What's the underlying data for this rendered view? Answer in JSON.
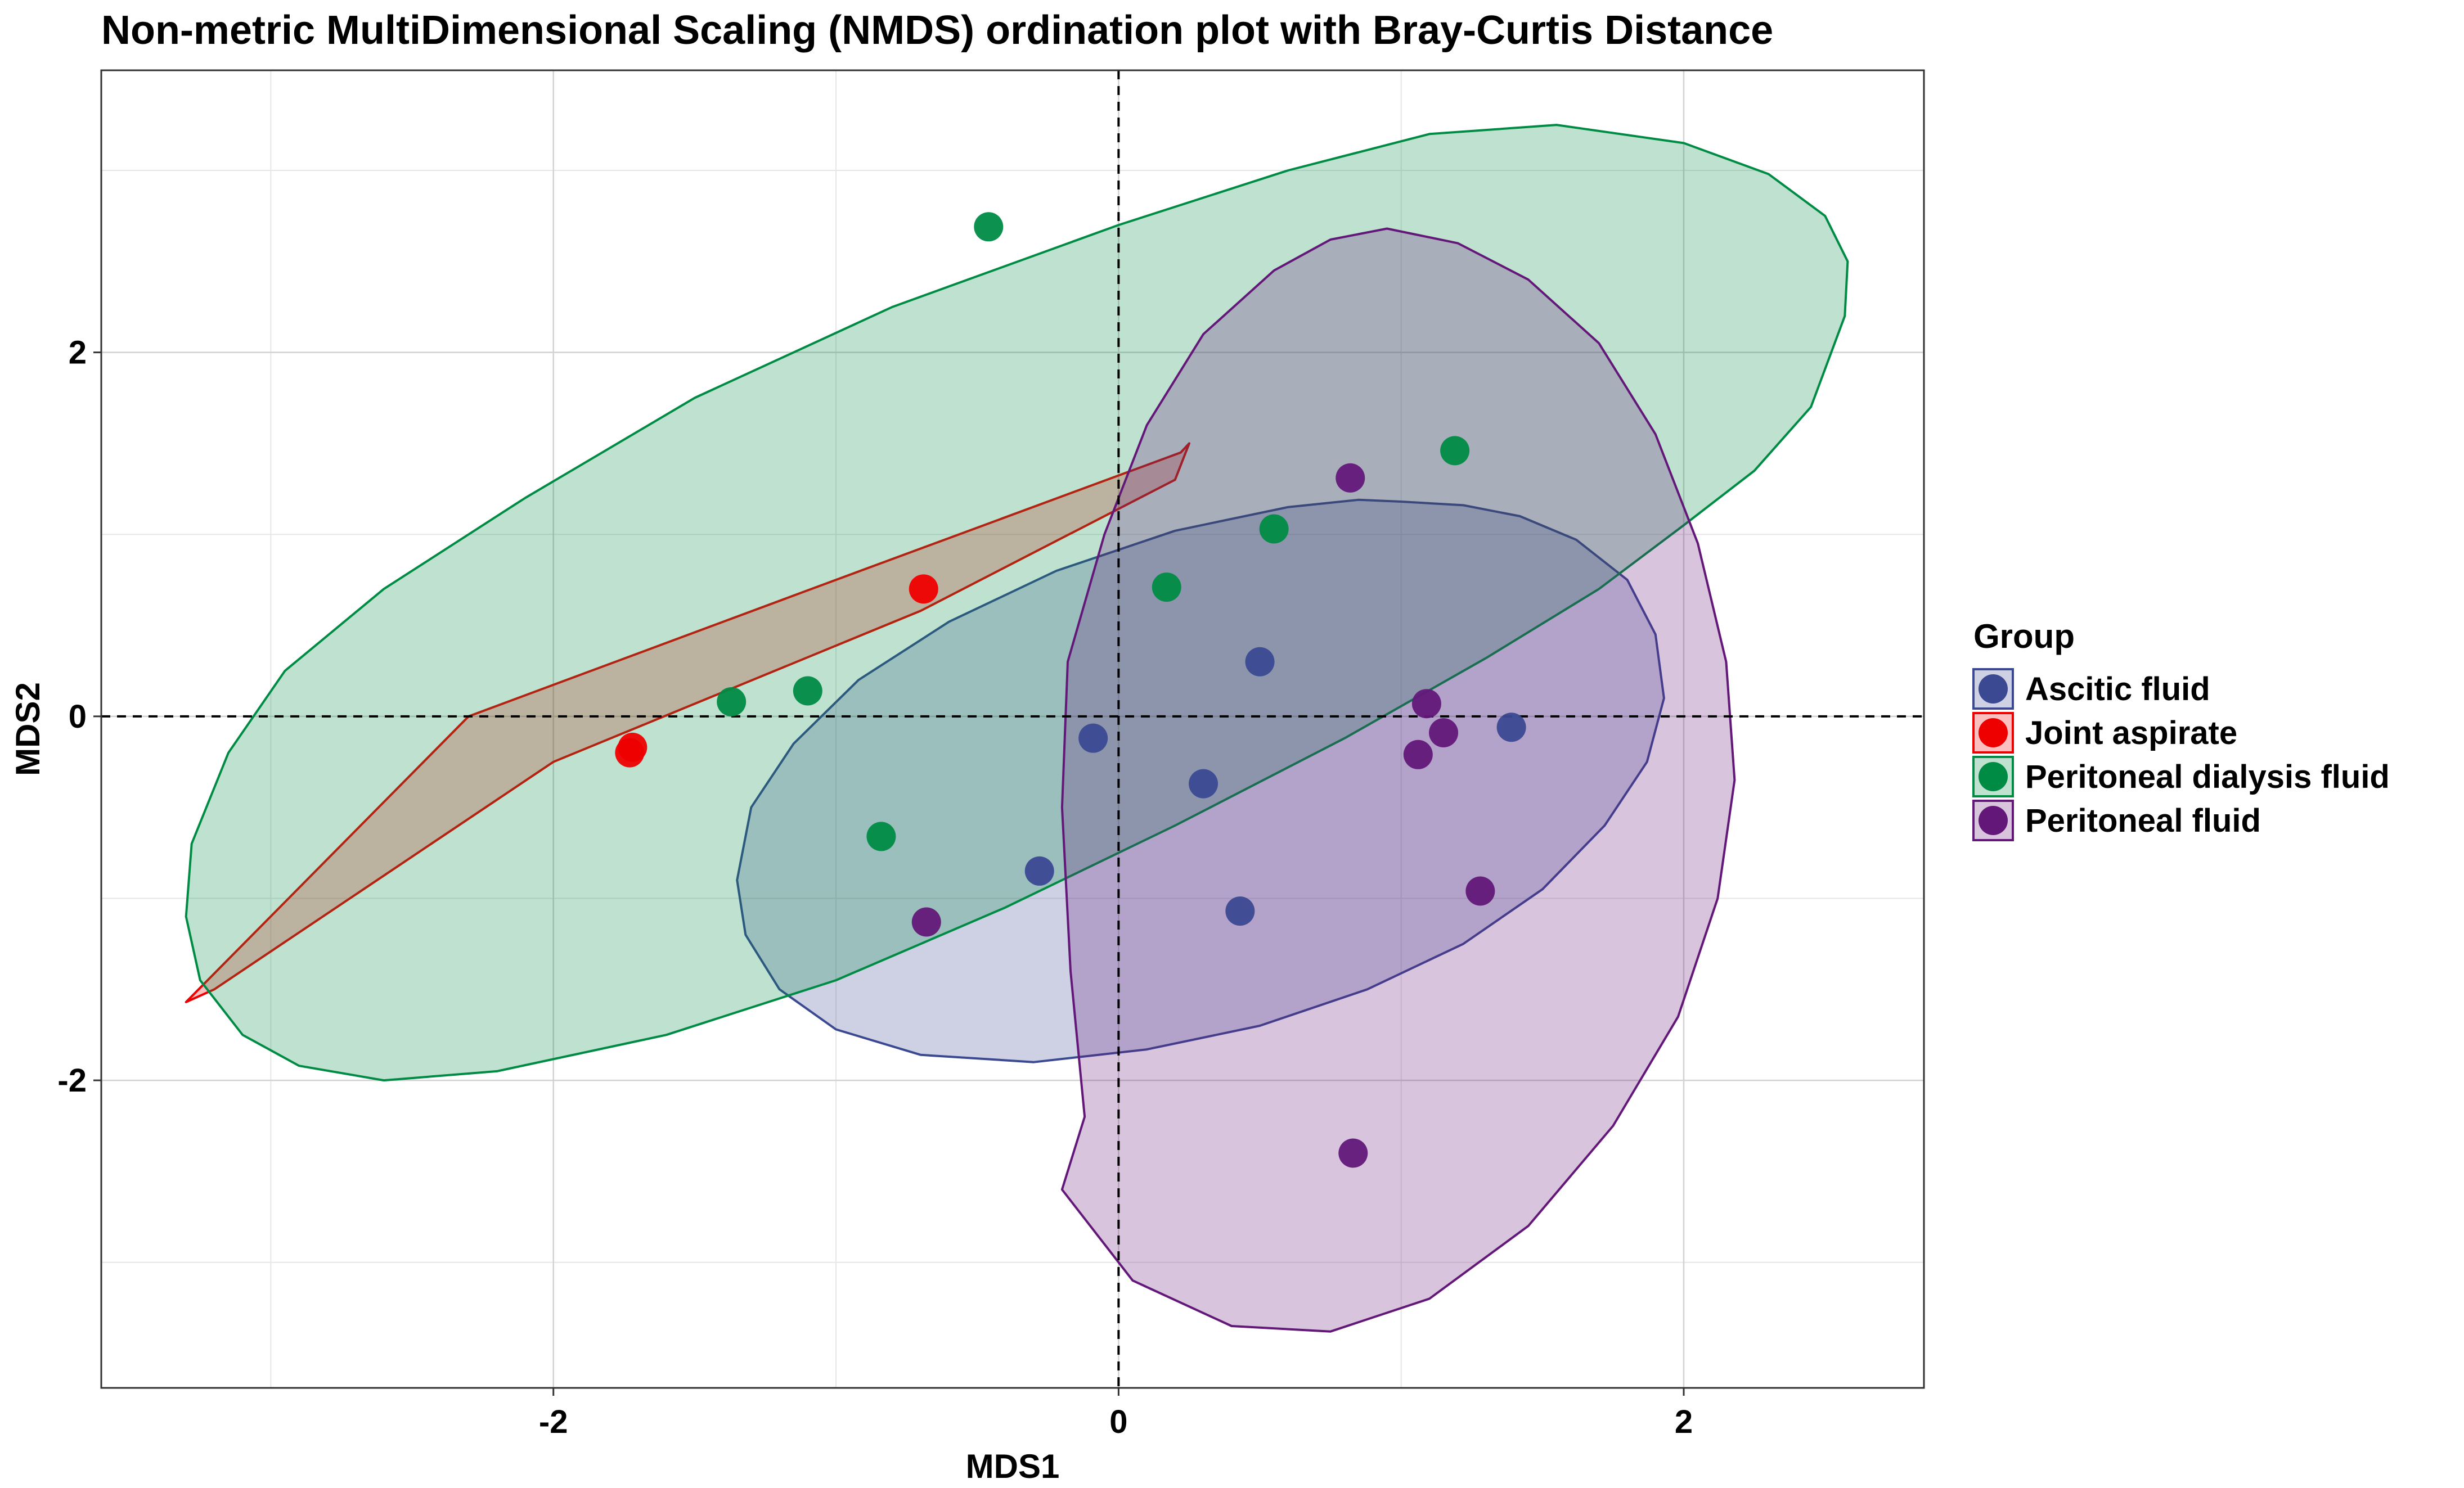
{
  "chart_data": {
    "type": "scatter",
    "title": "Non-metric MultiDimensional Scaling (NMDS) ordination plot with Bray-Curtis Distance",
    "xlabel": "MDS1",
    "ylabel": "MDS2",
    "xlim": [
      -3.6,
      2.85
    ],
    "ylim": [
      -3.69,
      3.55
    ],
    "x_ticks": [
      -2,
      0,
      2
    ],
    "x_tick_labels": [
      "-2",
      "0",
      "2"
    ],
    "y_ticks": [
      -2,
      0,
      2
    ],
    "y_tick_labels": [
      "-2",
      "0",
      "2"
    ],
    "grid": true,
    "reference_lines": {
      "x": 0,
      "y": 0,
      "style": "dashed"
    },
    "legend": {
      "title": "Group",
      "position": "right"
    },
    "series": [
      {
        "name": "Ascitic fluid",
        "color": "#3B4992",
        "points": [
          [
            -0.09,
            -0.12
          ],
          [
            0.3,
            -0.37
          ],
          [
            0.5,
            0.3
          ],
          [
            -0.28,
            -0.85
          ],
          [
            0.43,
            -1.07
          ],
          [
            1.39,
            -0.06
          ]
        ],
        "ellipse": [
          [
            1.0,
            1.18
          ],
          [
            1.22,
            1.16
          ],
          [
            1.42,
            1.1
          ],
          [
            1.62,
            0.97
          ],
          [
            1.8,
            0.75
          ],
          [
            1.9,
            0.45
          ],
          [
            1.93,
            0.1
          ],
          [
            1.87,
            -0.25
          ],
          [
            1.72,
            -0.6
          ],
          [
            1.5,
            -0.95
          ],
          [
            1.22,
            -1.25
          ],
          [
            0.88,
            -1.5
          ],
          [
            0.5,
            -1.7
          ],
          [
            0.1,
            -1.83
          ],
          [
            -0.3,
            -1.9
          ],
          [
            -0.7,
            -1.86
          ],
          [
            -1.0,
            -1.72
          ],
          [
            -1.2,
            -1.5
          ],
          [
            -1.32,
            -1.2
          ],
          [
            -1.35,
            -0.9
          ],
          [
            -1.3,
            -0.5
          ],
          [
            -1.15,
            -0.15
          ],
          [
            -0.92,
            0.2
          ],
          [
            -0.6,
            0.52
          ],
          [
            -0.22,
            0.8
          ],
          [
            0.2,
            1.02
          ],
          [
            0.6,
            1.15
          ],
          [
            0.85,
            1.19
          ]
        ]
      },
      {
        "name": "Joint aspirate",
        "color": "#EE0000",
        "points": [
          [
            -1.73,
            -0.2
          ],
          [
            -1.72,
            -0.17
          ],
          [
            -0.69,
            0.7
          ]
        ],
        "ellipse": [
          [
            0.25,
            1.5
          ],
          [
            0.22,
            1.45
          ],
          [
            -1.0,
            0.75
          ],
          [
            -2.3,
            0.0
          ],
          [
            -3.3,
            -1.57
          ],
          [
            -3.2,
            -1.5
          ],
          [
            -2.0,
            -0.25
          ],
          [
            -0.7,
            0.58
          ],
          [
            0.2,
            1.3
          ]
        ]
      },
      {
        "name": "Peritoneal dialysis fluid",
        "color": "#008B45",
        "points": [
          [
            -0.46,
            2.69
          ],
          [
            1.19,
            1.46
          ],
          [
            0.55,
            1.03
          ],
          [
            0.17,
            0.71
          ],
          [
            -1.1,
            0.14
          ],
          [
            -1.37,
            0.08
          ],
          [
            -0.84,
            -0.66
          ]
        ],
        "ellipse": [
          [
            1.55,
            3.25
          ],
          [
            2.0,
            3.15
          ],
          [
            2.3,
            2.98
          ],
          [
            2.5,
            2.75
          ],
          [
            2.58,
            2.5
          ],
          [
            2.57,
            2.2
          ],
          [
            2.45,
            1.7
          ],
          [
            2.25,
            1.35
          ],
          [
            2.0,
            1.05
          ],
          [
            1.7,
            0.7
          ],
          [
            1.3,
            0.32
          ],
          [
            0.8,
            -0.12
          ],
          [
            0.2,
            -0.6
          ],
          [
            -0.4,
            -1.05
          ],
          [
            -1.0,
            -1.45
          ],
          [
            -1.6,
            -1.75
          ],
          [
            -2.2,
            -1.95
          ],
          [
            -2.6,
            -2.0
          ],
          [
            -2.9,
            -1.92
          ],
          [
            -3.1,
            -1.75
          ],
          [
            -3.25,
            -1.45
          ],
          [
            -3.3,
            -1.1
          ],
          [
            -3.28,
            -0.7
          ],
          [
            -3.15,
            -0.2
          ],
          [
            -2.95,
            0.25
          ],
          [
            -2.6,
            0.7
          ],
          [
            -2.1,
            1.2
          ],
          [
            -1.5,
            1.75
          ],
          [
            -0.8,
            2.25
          ],
          [
            0.0,
            2.7
          ],
          [
            0.6,
            3.0
          ],
          [
            1.1,
            3.2
          ]
        ]
      },
      {
        "name": "Peritoneal fluid",
        "color": "#631879",
        "points": [
          [
            0.82,
            1.31
          ],
          [
            1.09,
            0.07
          ],
          [
            1.15,
            -0.09
          ],
          [
            1.06,
            -0.21
          ],
          [
            1.28,
            -0.96
          ],
          [
            -0.68,
            -1.13
          ],
          [
            0.83,
            -2.4
          ]
        ],
        "ellipse": [
          [
            0.95,
            2.68
          ],
          [
            1.2,
            2.6
          ],
          [
            1.45,
            2.4
          ],
          [
            1.7,
            2.05
          ],
          [
            1.9,
            1.55
          ],
          [
            2.05,
            0.95
          ],
          [
            2.15,
            0.3
          ],
          [
            2.18,
            -0.35
          ],
          [
            2.12,
            -1.0
          ],
          [
            1.98,
            -1.65
          ],
          [
            1.75,
            -2.25
          ],
          [
            1.45,
            -2.8
          ],
          [
            1.1,
            -3.2
          ],
          [
            0.75,
            -3.38
          ],
          [
            0.4,
            -3.35
          ],
          [
            0.05,
            -3.1
          ],
          [
            -0.2,
            -2.6
          ],
          [
            -0.12,
            -2.2
          ],
          [
            -0.17,
            -1.4
          ],
          [
            -0.2,
            -0.5
          ],
          [
            -0.18,
            0.3
          ],
          [
            -0.05,
            1.0
          ],
          [
            0.1,
            1.6
          ],
          [
            0.3,
            2.1
          ],
          [
            0.55,
            2.45
          ],
          [
            0.75,
            2.62
          ]
        ]
      }
    ]
  }
}
